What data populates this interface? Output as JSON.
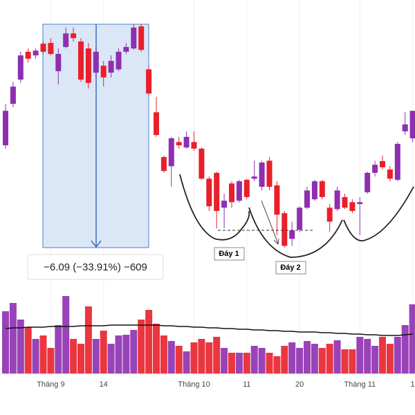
{
  "chart_data": {
    "type": "candlestick",
    "categories": [
      null,
      null,
      null,
      null,
      null,
      null,
      "Tháng 9",
      null,
      null,
      null,
      null,
      null,
      null,
      "14",
      null,
      null,
      null,
      null,
      null,
      null,
      null,
      null,
      null,
      null,
      null,
      "Tháng 10",
      null,
      null,
      null,
      null,
      null,
      null,
      "11",
      null,
      null,
      null,
      null,
      null,
      null,
      "20",
      null,
      null,
      null,
      null,
      null,
      null,
      null,
      "Tháng 11",
      null,
      null,
      null,
      null,
      null,
      null,
      "1"
    ],
    "candles": [
      [
        14.66,
        15.79,
        14.57,
        15.6
      ],
      [
        15.79,
        16.39,
        15.7,
        16.26
      ],
      [
        16.45,
        17.21,
        16.36,
        17.11
      ],
      [
        17.21,
        17.3,
        16.92,
        17.02
      ],
      [
        17.11,
        17.3,
        17.02,
        17.24
      ],
      [
        17.43,
        17.49,
        17.15,
        17.21
      ],
      [
        17.45,
        17.58,
        17.11,
        17.15
      ],
      [
        16.68,
        17.3,
        16.32,
        17.15
      ],
      [
        17.34,
        17.87,
        17.3,
        17.71
      ],
      [
        17.71,
        17.87,
        17.49,
        17.58
      ],
      [
        17.49,
        17.58,
        16.39,
        16.45
      ],
      [
        17.3,
        17.45,
        16.21,
        16.36
      ],
      [
        16.64,
        17.3,
        16.51,
        17.21
      ],
      [
        16.83,
        16.96,
        16.26,
        16.51
      ],
      [
        16.64,
        17.11,
        16.51,
        16.96
      ],
      [
        16.73,
        17.3,
        16.68,
        17.21
      ],
      [
        17.21,
        17.45,
        17.15,
        17.34
      ],
      [
        17.3,
        17.96,
        17.26,
        17.87
      ],
      [
        17.9,
        17.96,
        17.21,
        17.26
      ],
      [
        16.73,
        16.83,
        16.02,
        16.07
      ],
      [
        15.56,
        15.98,
        14.89,
        14.94
      ],
      [
        14.34,
        14.38,
        13.91,
        13.96
      ],
      [
        14.09,
        14.89,
        13.53,
        14.85
      ],
      [
        14.75,
        14.89,
        14.57,
        14.66
      ],
      [
        14.6,
        15.04,
        14.57,
        14.89
      ],
      [
        14.75,
        15.04,
        14.51,
        14.57
      ],
      [
        14.57,
        14.6,
        13.72,
        13.75
      ],
      [
        13.75,
        13.81,
        12.87,
        13.0
      ],
      [
        13.91,
        13.94,
        12.4,
        12.87
      ],
      [
        12.96,
        13.34,
        12.4,
        13.15
      ],
      [
        13.62,
        13.68,
        12.96,
        13.11
      ],
      [
        13.15,
        13.72,
        13.1,
        13.68
      ],
      [
        13.72,
        13.75,
        13.19,
        13.25
      ],
      [
        13.75,
        14.24,
        13.68,
        13.81
      ],
      [
        13.53,
        14.24,
        13.43,
        14.19
      ],
      [
        14.24,
        14.34,
        13.43,
        13.53
      ],
      [
        13.57,
        13.68,
        12.21,
        12.77
      ],
      [
        12.81,
        12.87,
        11.87,
        11.92
      ],
      [
        12.11,
        12.58,
        11.92,
        12.34
      ],
      [
        12.36,
        13.0,
        12.3,
        12.96
      ],
      [
        12.96,
        13.53,
        12.92,
        13.43
      ],
      [
        13.19,
        13.72,
        13.15,
        13.68
      ],
      [
        13.68,
        13.72,
        13.19,
        13.25
      ],
      [
        12.96,
        13.06,
        12.3,
        12.58
      ],
      [
        12.92,
        13.53,
        12.87,
        13.43
      ],
      [
        13.25,
        13.34,
        12.92,
        12.96
      ],
      [
        13.11,
        13.19,
        12.81,
        12.87
      ],
      [
        13.06,
        13.25,
        12.21,
        13.11
      ],
      [
        13.38,
        13.94,
        13.34,
        13.91
      ],
      [
        13.91,
        14.24,
        13.81,
        14.13
      ],
      [
        14.23,
        14.38,
        14.0,
        14.06
      ],
      [
        14.0,
        14.09,
        13.68,
        13.75
      ],
      [
        13.72,
        14.75,
        13.68,
        14.7
      ],
      [
        15.04,
        15.56,
        14.94,
        15.23
      ],
      [
        14.85,
        15.6,
        14.75,
        15.6
      ]
    ],
    "volume": [
      90,
      102,
      78,
      67,
      50,
      55,
      37,
      70,
      112,
      50,
      43,
      97,
      50,
      62,
      43,
      55,
      56,
      63,
      78,
      92,
      72,
      55,
      47,
      40,
      32,
      45,
      50,
      45,
      53,
      37,
      30,
      30,
      30,
      40,
      37,
      30,
      25,
      40,
      45,
      37,
      47,
      43,
      37,
      43,
      48,
      35,
      35,
      53,
      50,
      40,
      53,
      43,
      53,
      70,
      100
    ],
    "volume_ma": [
      65,
      66,
      66,
      67,
      67,
      67,
      68,
      68,
      68,
      68,
      69,
      69,
      69,
      69,
      70,
      70,
      70,
      70,
      70,
      70,
      70,
      69,
      69,
      68,
      68,
      67,
      67,
      66,
      66,
      65,
      65,
      64,
      64,
      63,
      63,
      62,
      62,
      61,
      61,
      60,
      60,
      60,
      59,
      59,
      58,
      58,
      57,
      57,
      56,
      56,
      55,
      55,
      55,
      56,
      57
    ],
    "ylim": [
      11.08,
      18.62
    ],
    "vlim": [
      0,
      130
    ],
    "up_color": "#8e2fb0",
    "down_color": "#e8202a",
    "annotation": "−6.09 (−33.91%) −609",
    "pattern_labels": [
      "Đáy 1",
      "Đáy 2"
    ]
  }
}
